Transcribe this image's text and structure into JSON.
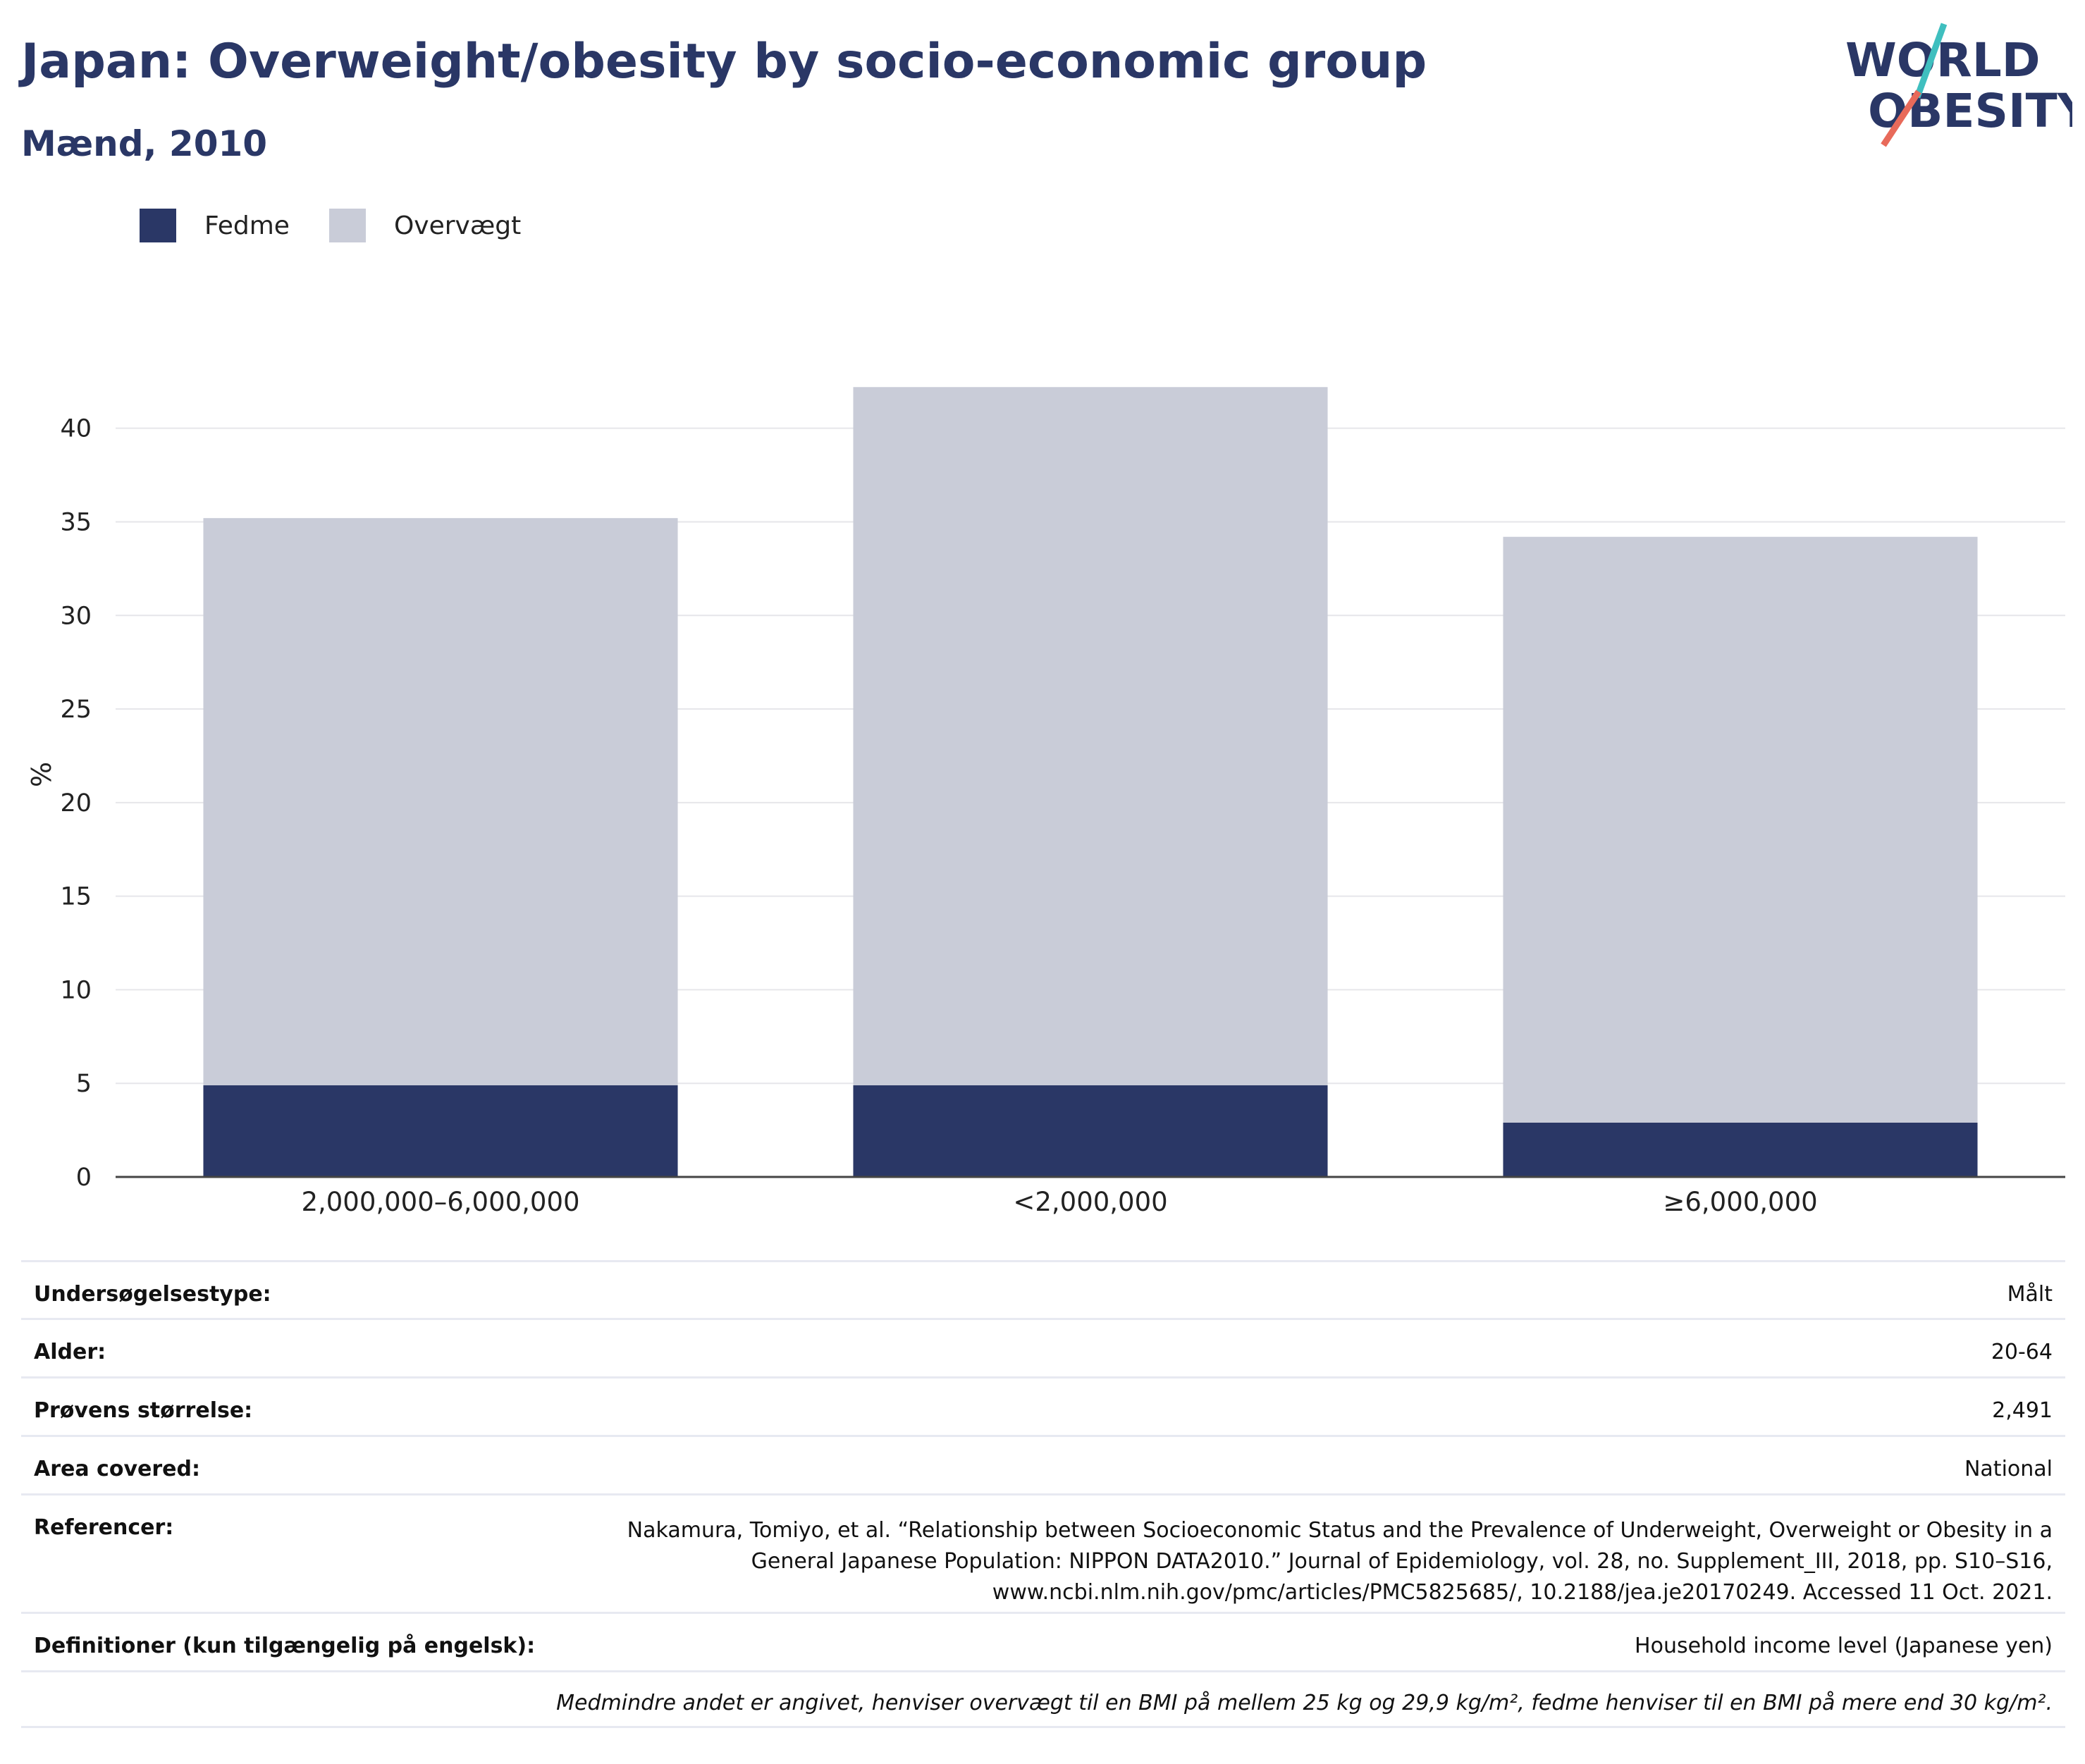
{
  "header": {
    "title": "Japan: Overweight/obesity by socio-economic group",
    "subtitle": "Mænd, 2010"
  },
  "logo": {
    "line1": "WORLD",
    "line2": "OBESITY",
    "accent_teal": "#3fbfbf",
    "accent_red": "#e86a5a"
  },
  "legend": [
    {
      "label": "Fedme",
      "color": "#2a3766"
    },
    {
      "label": "Overvægt",
      "color": "#c9ccd8"
    }
  ],
  "chart_data": {
    "type": "bar",
    "stacked": true,
    "categories": [
      "2,000,000–6,000,000",
      "<2,000,000",
      "≥6,000,000"
    ],
    "series": [
      {
        "name": "Fedme",
        "values": [
          4.9,
          4.9,
          2.9
        ],
        "color": "#2a3766"
      },
      {
        "name": "Overvægt",
        "values": [
          30.3,
          37.3,
          31.3
        ],
        "color": "#c9ccd8"
      }
    ],
    "ylabel": "%",
    "ylim": [
      0,
      43
    ],
    "yticks": [
      0,
      5,
      10,
      15,
      20,
      25,
      30,
      35,
      40
    ],
    "grid": true,
    "legend_position": "top-left"
  },
  "meta": {
    "survey_type": {
      "label": "Undersøgelsestype:",
      "value": "Målt"
    },
    "age": {
      "label": "Alder:",
      "value": "20-64"
    },
    "sample_size": {
      "label": "Prøvens størrelse:",
      "value": "2,491"
    },
    "area": {
      "label": "Area covered:",
      "value": "National"
    },
    "references": {
      "label": "Referencer:",
      "lines": [
        "Nakamura, Tomiyo, et al. “Relationship between Socioeconomic Status and the Prevalence of Underweight, Overweight or Obesity in a",
        "General Japanese Population: NIPPON DATA2010.” Journal of Epidemiology, vol. 28, no. Supplement_III, 2018, pp. S10–S16,",
        "www.ncbi.nlm.nih.gov/pmc/articles/PMC5825685/, 10.2188/jea.je20170249. Accessed 11 Oct. 2021."
      ]
    },
    "definitions": {
      "label": "Definitioner (kun tilgængelig på engelsk):",
      "value": "Household income level (Japanese yen)"
    },
    "footnote": "Medmindre andet er angivet, henviser overvægt til en BMI på mellem 25 kg og 29,9 kg/m², fedme henviser til en BMI på mere end 30 kg/m²."
  }
}
